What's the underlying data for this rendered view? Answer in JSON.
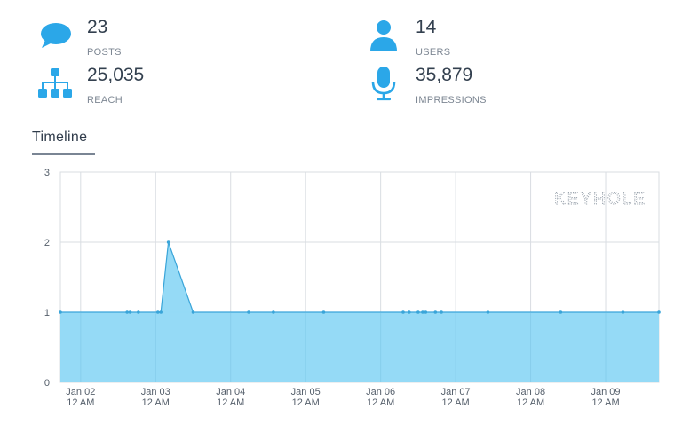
{
  "stats": {
    "posts": {
      "value": "23",
      "label": "POSTS",
      "icon": "chat-bubble-icon"
    },
    "users": {
      "value": "14",
      "label": "USERS",
      "icon": "user-icon"
    },
    "reach": {
      "value": "25,035",
      "label": "REACH",
      "icon": "sitemap-icon"
    },
    "impressions": {
      "value": "35,879",
      "label": "IMPRESSIONS",
      "icon": "microphone-icon"
    }
  },
  "colors": {
    "accent": "#2ba7e8",
    "area": "#8fd8f5",
    "line": "#3aa5d9"
  },
  "timeline": {
    "title": "Timeline",
    "watermark": "KEYHOLE"
  },
  "chart_data": {
    "type": "area",
    "title": "",
    "xlabel": "",
    "ylabel": "",
    "ylim": [
      0,
      3
    ],
    "yticks": [
      "0",
      "1",
      "2",
      "3"
    ],
    "xticks": [
      {
        "date": "Jan 02",
        "time": "12 AM",
        "day": 1
      },
      {
        "date": "Jan 03",
        "time": "12 AM",
        "day": 2
      },
      {
        "date": "Jan 04",
        "time": "12 AM",
        "day": 3
      },
      {
        "date": "Jan 05",
        "time": "12 AM",
        "day": 4
      },
      {
        "date": "Jan 06",
        "time": "12 AM",
        "day": 5
      },
      {
        "date": "Jan 07",
        "time": "12 AM",
        "day": 6
      },
      {
        "date": "Jan 08",
        "time": "12 AM",
        "day": 7
      },
      {
        "date": "Jan 09",
        "time": "12 AM",
        "day": 8
      }
    ],
    "xlim": [
      0.73,
      8.71
    ],
    "grid": true,
    "series": [
      {
        "x": [
          0.73,
          1.62,
          1.66,
          1.77,
          2.03,
          2.07,
          2.17,
          2.5,
          3.24,
          3.57,
          4.24,
          5.3,
          5.38,
          5.5,
          5.56,
          5.6,
          5.73,
          5.81,
          6.43,
          7.4,
          8.23,
          8.71
        ],
        "y": [
          1,
          1,
          1,
          1,
          1,
          1,
          2,
          1,
          1,
          1,
          1,
          1,
          1,
          1,
          1,
          1,
          1,
          1,
          1,
          1,
          1,
          1
        ]
      }
    ]
  }
}
